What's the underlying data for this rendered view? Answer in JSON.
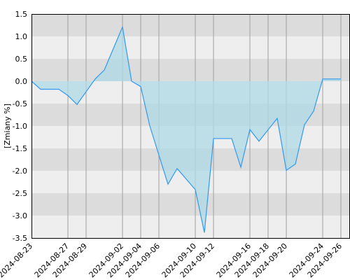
{
  "chart_data": {
    "type": "area",
    "ylabel": "[Zmiany %]",
    "ylim": [
      -3.5,
      1.5
    ],
    "yticks": [
      1.5,
      1.0,
      0.5,
      0.0,
      -0.5,
      -1.0,
      -1.5,
      -2.0,
      -2.5,
      -3.0,
      -3.5
    ],
    "ytick_labels": [
      "1.5",
      "1.0",
      "0.5",
      "0.0",
      "-0.5",
      "-1.0",
      "-1.5",
      "-2.0",
      "-2.5",
      "-3.0",
      "-3.5"
    ],
    "xlim": [
      "2024-08-23",
      "2024-09-27"
    ],
    "xtick_labels": [
      "2024-08-23",
      "2024-08-27",
      "2024-08-29",
      "2024-09-02",
      "2024-09-04",
      "2024-09-06",
      "2024-09-10",
      "2024-09-12",
      "2024-09-16",
      "2024-09-18",
      "2024-09-20",
      "2024-09-24",
      "2024-09-26"
    ],
    "grid": true,
    "band_colors": [
      "#dcdcdc",
      "#eeeeee"
    ],
    "fill_color": "#add8e6",
    "line_color": "#3399ee",
    "x": [
      "2024-08-23",
      "2024-08-24",
      "2024-08-26",
      "2024-08-27",
      "2024-08-28",
      "2024-08-30",
      "2024-08-31",
      "2024-09-02",
      "2024-09-03",
      "2024-09-04",
      "2024-09-05",
      "2024-09-07",
      "2024-09-08",
      "2024-09-10",
      "2024-09-11",
      "2024-09-12",
      "2024-09-14",
      "2024-09-15",
      "2024-09-16",
      "2024-09-17",
      "2024-09-19",
      "2024-09-20",
      "2024-09-21",
      "2024-09-22",
      "2024-09-23",
      "2024-09-24",
      "2024-09-26"
    ],
    "values": [
      0.0,
      -0.18,
      -0.18,
      -0.32,
      -0.52,
      0.05,
      0.25,
      1.21,
      0.0,
      -0.12,
      -1.0,
      -2.3,
      -1.95,
      -2.42,
      -3.38,
      -1.28,
      -1.28,
      -1.92,
      -1.08,
      -1.34,
      -0.83,
      -1.99,
      -1.85,
      -0.97,
      -0.67,
      0.05,
      0.05
    ]
  }
}
